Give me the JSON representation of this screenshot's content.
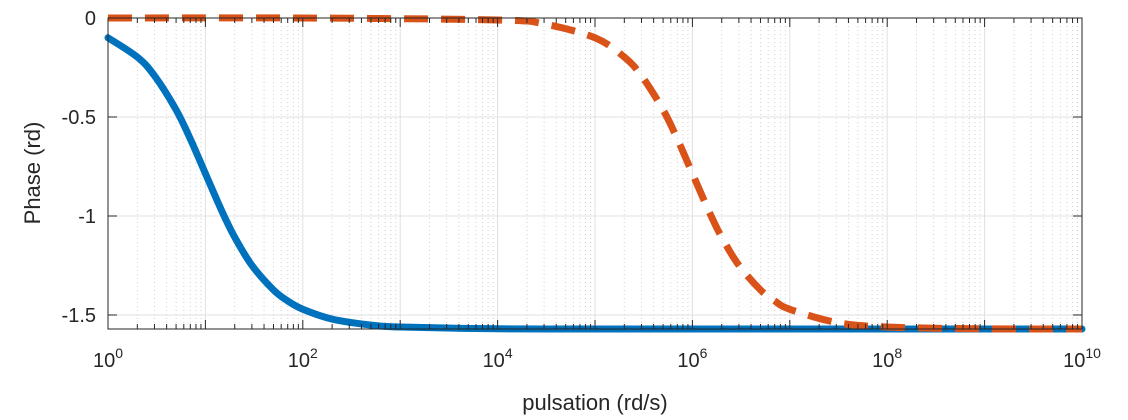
{
  "chart_data": {
    "type": "line",
    "xscale": "log",
    "xlim": [
      1,
      10000000000
    ],
    "ylim": [
      -1.5708,
      0
    ],
    "grid": true,
    "minor_grid": true,
    "xlabel": "pulsation (rd/s)",
    "ylabel": "Phase (rd)",
    "x_ticks": [
      1,
      100,
      10000,
      1000000,
      100000000,
      10000000000
    ],
    "x_tick_labels": [
      {
        "base": "10",
        "exp": "0"
      },
      {
        "base": "10",
        "exp": "2"
      },
      {
        "base": "10",
        "exp": "4"
      },
      {
        "base": "10",
        "exp": "6"
      },
      {
        "base": "10",
        "exp": "8"
      },
      {
        "base": "10",
        "exp": "10"
      }
    ],
    "y_ticks": [
      0,
      -0.5,
      -1,
      -1.5
    ],
    "y_tick_labels": [
      "0",
      "-0.5",
      "-1",
      "-1.5"
    ],
    "series": [
      {
        "style": "solid",
        "color": "#0072bd",
        "x": [
          1,
          2,
          3,
          5,
          7,
          10,
          15,
          20,
          30,
          50,
          70,
          100,
          200,
          500,
          1000,
          10000,
          100000,
          1000000,
          10000000,
          100000000,
          1000000000,
          10000000000
        ],
        "y": [
          -0.0997,
          -0.1974,
          -0.2915,
          -0.4636,
          -0.6107,
          -0.7854,
          -0.9828,
          -1.1071,
          -1.249,
          -1.3734,
          -1.4289,
          -1.4711,
          -1.5208,
          -1.5508,
          -1.5608,
          -1.5698,
          -1.5707,
          -1.5708,
          -1.5708,
          -1.5708,
          -1.5708,
          -1.5708
        ]
      },
      {
        "style": "dashed",
        "color": "#d95319",
        "x": [
          1,
          100,
          10000,
          30000,
          100000,
          200000,
          300000,
          500000,
          700000,
          1000000,
          1500000,
          2000000,
          3000000,
          5000000,
          7000000,
          10000000,
          30000000,
          100000000,
          1000000000,
          10000000000
        ],
        "y": [
          0,
          0,
          -0.01,
          -0.03,
          -0.0997,
          -0.1974,
          -0.2915,
          -0.4636,
          -0.6107,
          -0.7854,
          -0.9828,
          -1.1071,
          -1.249,
          -1.3734,
          -1.4289,
          -1.4711,
          -1.5375,
          -1.5608,
          -1.5698,
          -1.5707
        ]
      }
    ]
  }
}
